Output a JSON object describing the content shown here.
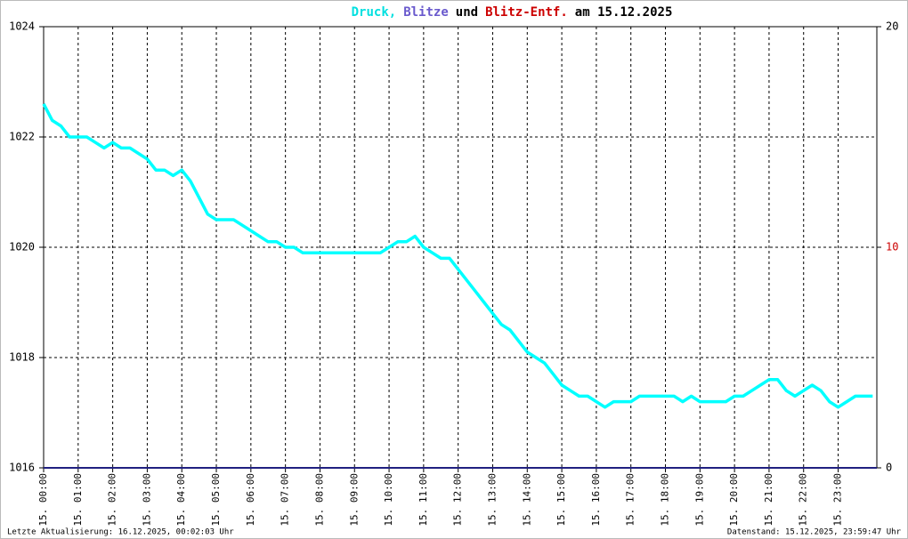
{
  "chart_data": {
    "type": "line",
    "title_parts": [
      "Druck,",
      "Blitze",
      "und",
      "Blitz-Entf.",
      "am 15.12.2025"
    ],
    "title_colors": [
      "#00e0e0",
      "#6a5acd",
      "#000000",
      "#cc0000",
      "#000000"
    ],
    "footer_left": "Letzte Aktualisierung: 16.12.2025, 00:02:03 Uhr",
    "footer_right": "Datenstand: 15.12.2025, 23:59:47 Uhr",
    "xlim": [
      0,
      24.12
    ],
    "xticks": [
      {
        "value": 0,
        "label": "15. 00:00"
      },
      {
        "value": 1,
        "label": "15. 01:00"
      },
      {
        "value": 2,
        "label": "15. 02:00"
      },
      {
        "value": 3,
        "label": "15. 03:00"
      },
      {
        "value": 4,
        "label": "15. 04:00"
      },
      {
        "value": 5,
        "label": "15. 05:00"
      },
      {
        "value": 6,
        "label": "15. 06:00"
      },
      {
        "value": 7,
        "label": "15. 07:00"
      },
      {
        "value": 8,
        "label": "15. 08:00"
      },
      {
        "value": 9,
        "label": "15. 09:00"
      },
      {
        "value": 10,
        "label": "15. 10:00"
      },
      {
        "value": 11,
        "label": "15. 11:00"
      },
      {
        "value": 12,
        "label": "15. 12:00"
      },
      {
        "value": 13,
        "label": "15. 13:00"
      },
      {
        "value": 14,
        "label": "15. 14:00"
      },
      {
        "value": 15,
        "label": "15. 15:00"
      },
      {
        "value": 16,
        "label": "15. 16:00"
      },
      {
        "value": 17,
        "label": "15. 17:00"
      },
      {
        "value": 18,
        "label": "15. 18:00"
      },
      {
        "value": 19,
        "label": "15. 19:00"
      },
      {
        "value": 20,
        "label": "15. 20:00"
      },
      {
        "value": 21,
        "label": "15. 21:00"
      },
      {
        "value": 22,
        "label": "15. 22:00"
      },
      {
        "value": 23,
        "label": "15. 23:00"
      }
    ],
    "ylim": [
      1016,
      1024
    ],
    "yticks": [
      1016,
      1018,
      1020,
      1022,
      1024
    ],
    "y2lim": [
      0,
      20
    ],
    "y2ticks": [
      0,
      10,
      20
    ],
    "y2tick_colors": [
      "#000000",
      "#cc0000",
      "#000000"
    ],
    "grid": true,
    "series": [
      {
        "name": "Druck",
        "color": "#00ffff",
        "x": [
          0,
          0.25,
          0.5,
          0.75,
          1,
          1.25,
          1.5,
          1.75,
          2,
          2.25,
          2.5,
          2.75,
          3,
          3.25,
          3.5,
          3.75,
          4,
          4.25,
          4.5,
          4.75,
          5,
          5.25,
          5.5,
          5.75,
          6,
          6.25,
          6.5,
          6.75,
          7,
          7.25,
          7.5,
          7.75,
          8,
          8.25,
          8.5,
          8.75,
          9,
          9.25,
          9.5,
          9.75,
          10,
          10.25,
          10.5,
          10.75,
          11,
          11.25,
          11.5,
          11.75,
          12,
          12.25,
          12.5,
          12.75,
          13,
          13.25,
          13.5,
          13.75,
          14,
          14.25,
          14.5,
          14.75,
          15,
          15.25,
          15.5,
          15.75,
          16,
          16.25,
          16.5,
          16.75,
          17,
          17.25,
          17.5,
          17.75,
          18,
          18.25,
          18.5,
          18.75,
          19,
          19.25,
          19.5,
          19.75,
          20,
          20.25,
          20.5,
          20.75,
          21,
          21.25,
          21.5,
          21.75,
          22,
          22.25,
          22.5,
          22.75,
          23,
          23.25,
          23.5,
          23.75,
          24
        ],
        "values": [
          1022.6,
          1022.3,
          1022.2,
          1022.0,
          1022.0,
          1022.0,
          1021.9,
          1021.8,
          1021.9,
          1021.8,
          1021.8,
          1021.7,
          1021.6,
          1021.4,
          1021.4,
          1021.3,
          1021.4,
          1021.2,
          1020.9,
          1020.6,
          1020.5,
          1020.5,
          1020.5,
          1020.4,
          1020.3,
          1020.2,
          1020.1,
          1020.1,
          1020.0,
          1020.0,
          1019.9,
          1019.9,
          1019.9,
          1019.9,
          1019.9,
          1019.9,
          1019.9,
          1019.9,
          1019.9,
          1019.9,
          1020.0,
          1020.1,
          1020.1,
          1020.2,
          1020.0,
          1019.9,
          1019.8,
          1019.8,
          1019.6,
          1019.4,
          1019.2,
          1019.0,
          1018.8,
          1018.6,
          1018.5,
          1018.3,
          1018.1,
          1018.0,
          1017.9,
          1017.7,
          1017.5,
          1017.4,
          1017.3,
          1017.3,
          1017.2,
          1017.1,
          1017.2,
          1017.2,
          1017.2,
          1017.3,
          1017.3,
          1017.3,
          1017.3,
          1017.3,
          1017.2,
          1017.3,
          1017.2,
          1017.2,
          1017.2,
          1017.2,
          1017.3,
          1017.3,
          1017.4,
          1017.5,
          1017.6,
          1017.6,
          1017.4,
          1017.3,
          1017.4,
          1017.5,
          1017.4,
          1017.2,
          1017.1,
          1017.2,
          1017.3,
          1017.3,
          1017.3
        ]
      },
      {
        "name": "Blitze",
        "color": "#202080",
        "axis": "y2",
        "x": [
          0,
          24.12
        ],
        "values": [
          0,
          0
        ]
      }
    ]
  }
}
